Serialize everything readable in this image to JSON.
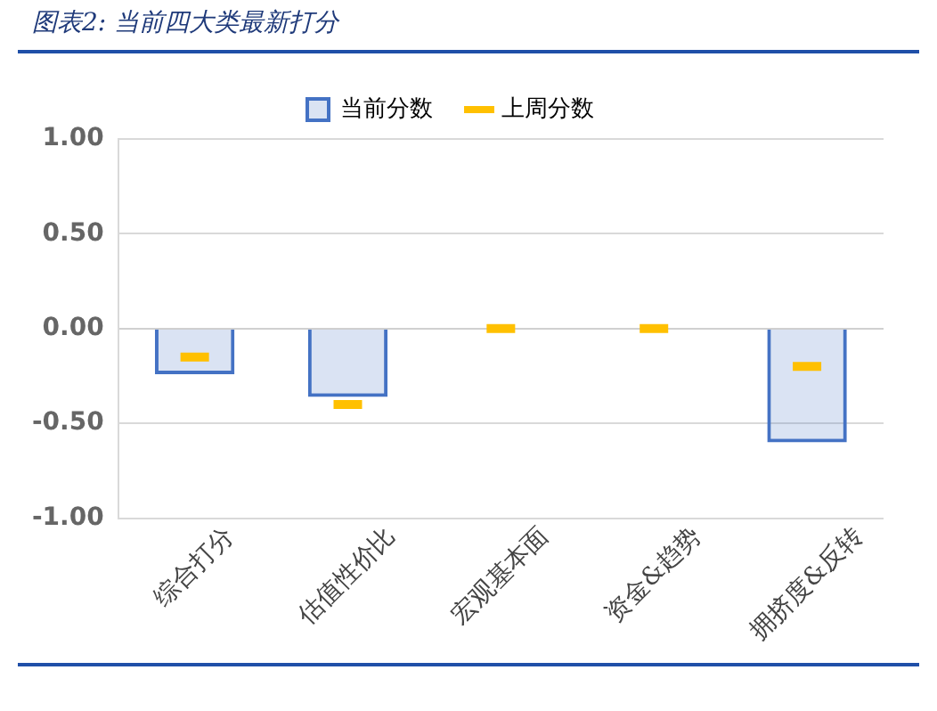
{
  "chart_data": {
    "type": "bar",
    "title": "图表2:  当前四大类最新打分",
    "categories": [
      "综合打分",
      "估值性价比",
      "宏观基本面",
      "资金&趋势",
      "拥挤度&反转"
    ],
    "series": [
      {
        "name": "当前分数",
        "color": "#4472c4",
        "values": [
          -0.24,
          -0.36,
          0,
          0,
          -0.6
        ]
      },
      {
        "name": "上周分数",
        "type": "scatter",
        "color": "#ffc000",
        "x": [
          "综合打分",
          "估值性价比",
          "宏观基本面",
          "资金&趋势",
          "拥挤度&反转"
        ],
        "values": [
          -0.15,
          -0.4,
          0,
          0,
          -0.2
        ]
      }
    ],
    "ylim": [
      -1,
      1
    ],
    "yticks": [
      {
        "value": -1,
        "label": "-1.00"
      },
      {
        "value": -0.5,
        "label": "-0.50"
      },
      {
        "value": 0,
        "label": "0.00"
      },
      {
        "value": 0.5,
        "label": "0.50"
      },
      {
        "value": 1,
        "label": "1.00"
      }
    ],
    "grid": "y",
    "legend": "top"
  }
}
